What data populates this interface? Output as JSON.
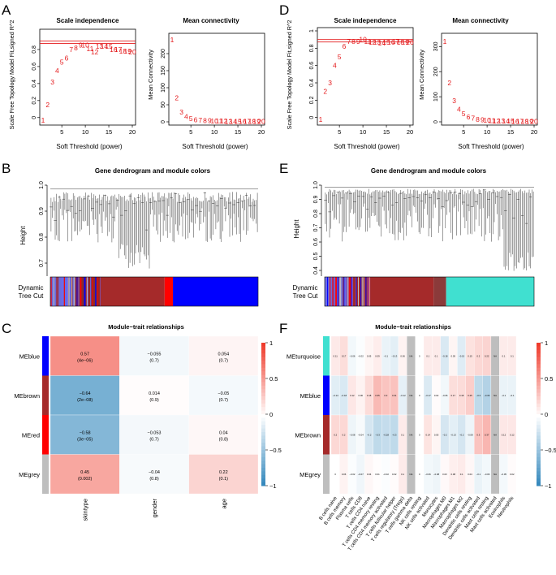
{
  "panels": {
    "A": {
      "letter": "A",
      "scale_title": "Scale independence",
      "mean_title": "Mean connectivity",
      "scale_ylabel": "Scale Free Topology Model Fit,signed R^2",
      "mean_ylabel": "Mean Connectivity",
      "xlabel": "Soft Threshold (power)"
    },
    "B": {
      "letter": "B",
      "title": "Gene dendrogram and module colors",
      "ylabel": "Height",
      "track_label_1": "Dynamic",
      "track_label_2": "Tree Cut"
    },
    "C": {
      "letter": "C",
      "title": "Module−trait relationships"
    },
    "D": {
      "letter": "D",
      "scale_title": "Scale independence",
      "mean_title": "Mean connectivity",
      "scale_ylabel": "Scale Free Topology Model Fit,signed R^2",
      "mean_ylabel": "Mean Connectivity",
      "xlabel": "Soft Threshold (power)"
    },
    "E": {
      "letter": "E",
      "title": "Gene dendrogram and module colors",
      "ylabel": "Height",
      "track_label_1": "Dynamic",
      "track_label_2": "Tree Cut"
    },
    "F": {
      "letter": "F",
      "title": "Module−trait relationships"
    }
  },
  "colors": {
    "red_text": "#e41a1c",
    "red_line": "#e41a1c",
    "pos": "#ef3b2c",
    "neg": "#2b83ba"
  },
  "chart_data": [
    {
      "panel": "A",
      "type": "scatter",
      "title": "Scale independence",
      "xlabel": "Soft Threshold (power)",
      "ylabel": "Scale Free Topology Model Fit,signed R^2",
      "xlim": [
        1,
        20
      ],
      "ylim": [
        -0.05,
        1.0
      ],
      "x": [
        1,
        2,
        3,
        4,
        5,
        6,
        7,
        8,
        9,
        10,
        11,
        12,
        13,
        14,
        15,
        16,
        17,
        18,
        19,
        20
      ],
      "y": [
        -0.03,
        0.15,
        0.42,
        0.55,
        0.65,
        0.7,
        0.8,
        0.82,
        0.85,
        0.85,
        0.81,
        0.77,
        0.84,
        0.84,
        0.84,
        0.8,
        0.8,
        0.78,
        0.78,
        0.77
      ],
      "hline": 0.9,
      "xticks": [
        5,
        10,
        15,
        20
      ],
      "yticks": [
        0.0,
        0.2,
        0.4,
        0.6,
        0.8
      ]
    },
    {
      "panel": "A",
      "type": "scatter",
      "title": "Mean connectivity",
      "xlabel": "Soft Threshold (power)",
      "ylabel": "Mean Connectivity",
      "xlim": [
        1,
        20
      ],
      "ylim": [
        0,
        250
      ],
      "x": [
        1,
        2,
        3,
        4,
        5,
        6,
        7,
        8,
        9,
        10,
        11,
        12,
        13,
        14,
        15,
        16,
        17,
        18,
        19,
        20
      ],
      "y": [
        240,
        70,
        28,
        15,
        9,
        6,
        4.5,
        3.5,
        3,
        2.5,
        2,
        1.8,
        1.6,
        1.5,
        1.4,
        1.3,
        1.2,
        1.1,
        1.0,
        1.0
      ],
      "xticks": [
        5,
        10,
        15,
        20
      ],
      "yticks": [
        0,
        50,
        100,
        150,
        200
      ]
    },
    {
      "panel": "D",
      "type": "scatter",
      "title": "Scale independence",
      "xlabel": "Soft Threshold (power)",
      "ylabel": "Scale Free Topology Model Fit,signed R^2",
      "xlim": [
        1,
        20
      ],
      "ylim": [
        -0.05,
        1.0
      ],
      "x": [
        1,
        2,
        3,
        4,
        5,
        6,
        7,
        8,
        9,
        10,
        11,
        12,
        13,
        14,
        15,
        16,
        17,
        18,
        19,
        20
      ],
      "y": [
        -0.02,
        0.3,
        0.4,
        0.6,
        0.7,
        0.82,
        0.88,
        0.88,
        0.88,
        0.9,
        0.88,
        0.87,
        0.87,
        0.86,
        0.87,
        0.87,
        0.88,
        0.87,
        0.87,
        0.87
      ],
      "hline": 0.9,
      "xticks": [
        5,
        10,
        15,
        20
      ],
      "yticks": [
        0.0,
        0.2,
        0.4,
        0.6,
        0.8,
        1.0
      ]
    },
    {
      "panel": "D",
      "type": "scatter",
      "title": "Mean connectivity",
      "xlabel": "Soft Threshold (power)",
      "ylabel": "Mean Connectivity",
      "xlim": [
        1,
        20
      ],
      "ylim": [
        0,
        340
      ],
      "x": [
        1,
        2,
        3,
        4,
        5,
        6,
        7,
        8,
        9,
        10,
        11,
        12,
        13,
        14,
        15,
        16,
        17,
        18,
        19,
        20
      ],
      "y": [
        320,
        155,
        85,
        50,
        32,
        20,
        14,
        10,
        8,
        6,
        5,
        4,
        3.5,
        3,
        2.5,
        2,
        2,
        1.8,
        1.5,
        1.5
      ],
      "xticks": [
        5,
        10,
        15,
        20
      ],
      "yticks": [
        0,
        100,
        200,
        300
      ]
    },
    {
      "panel": "C",
      "type": "heatmap",
      "title": "Module−trait relationships",
      "rows": [
        "MEblue",
        "MEbrown",
        "MEred",
        "MEgrey"
      ],
      "row_colors": [
        "#0000ff",
        "#a52a2a",
        "#ff0000",
        "#bebebe"
      ],
      "cols": [
        "skintype",
        "gender",
        "age"
      ],
      "values": [
        [
          0.57,
          -0.055,
          0.054
        ],
        [
          -0.64,
          0.014,
          -0.05
        ],
        [
          -0.58,
          -0.053,
          0.04
        ],
        [
          0.45,
          -0.04,
          0.22
        ]
      ],
      "pvalues": [
        [
          "4e−06",
          "0.7",
          "0.7"
        ],
        [
          "2e−08",
          "0.9",
          "0.7"
        ],
        [
          "3e−05",
          "0.7",
          "0.8"
        ],
        [
          "0.002",
          "0.8",
          "0.1"
        ]
      ],
      "legend_ticks": [
        "1",
        "0.5",
        "0",
        "−0.5",
        "−1"
      ]
    },
    {
      "panel": "F",
      "type": "heatmap",
      "title": "Module−trait relationships",
      "rows": [
        "MEturquoise",
        "MEblue",
        "MEbrown",
        "MEgrey"
      ],
      "row_colors": [
        "#40e0d0",
        "#0000ff",
        "#a52a2a",
        "#bebebe"
      ],
      "cols": [
        "B cells naive",
        "B cells memory",
        "Plasma cells",
        "T cells CD8",
        "T cells CD4 naive",
        "T cells CD4 memory resting",
        "T cells CD4 memory activated",
        "T cells follicular helper",
        "T cells regulatory (Tregs)",
        "T cells gamma delta",
        "NK cells resting",
        "NK cells activated",
        "Monocytes",
        "Macrophages M0",
        "Macrophages M1",
        "Macrophages M2",
        "Dendritic cells resting",
        "Dendritic cells activated",
        "Mast cells resting",
        "Mast cells activated",
        "Eosinophils",
        "Neutrophils"
      ],
      "values": [
        [
          0.11,
          0.17,
          -0.06,
          -0.02,
          0.05,
          0.09,
          -0.1,
          -0.13,
          0.06,
          0.5,
          0,
          0.1,
          0.1,
          -0.18,
          0.05,
          -0.15,
          0.15,
          0.2,
          0.22,
          0,
          0.1,
          0.1
        ],
        [
          -0.14,
          -0.18,
          0.12,
          0.06,
          0.18,
          0.35,
          0.3,
          0.31,
          -0.12,
          -0.5,
          0,
          -0.17,
          0.02,
          -0.06,
          0.17,
          0.18,
          0.25,
          -0.3,
          -0.36,
          0,
          -0.1,
          -0.1
        ],
        [
          0.2,
          0.2,
          -0.08,
          -0.04,
          -0.2,
          -0.3,
          -0.28,
          -0.3,
          0.1,
          0.6,
          0,
          0.14,
          0.05,
          -0.2,
          -0.13,
          -0.2,
          -0.08,
          0.3,
          0.37,
          0,
          0.12,
          0.12
        ],
        [
          0,
          0.06,
          -0.02,
          -0.07,
          0.04,
          0.01,
          -0.02,
          0.02,
          0.1,
          0.05,
          0,
          -0.06,
          -0.08,
          0.03,
          0.08,
          0.1,
          0.04,
          -0.1,
          -0.06,
          0,
          -0.05,
          0.02
        ]
      ],
      "na_columns": [
        9,
        19
      ],
      "legend_ticks": [
        "1",
        "0.5",
        "0",
        "−0.5",
        "−1"
      ]
    }
  ]
}
